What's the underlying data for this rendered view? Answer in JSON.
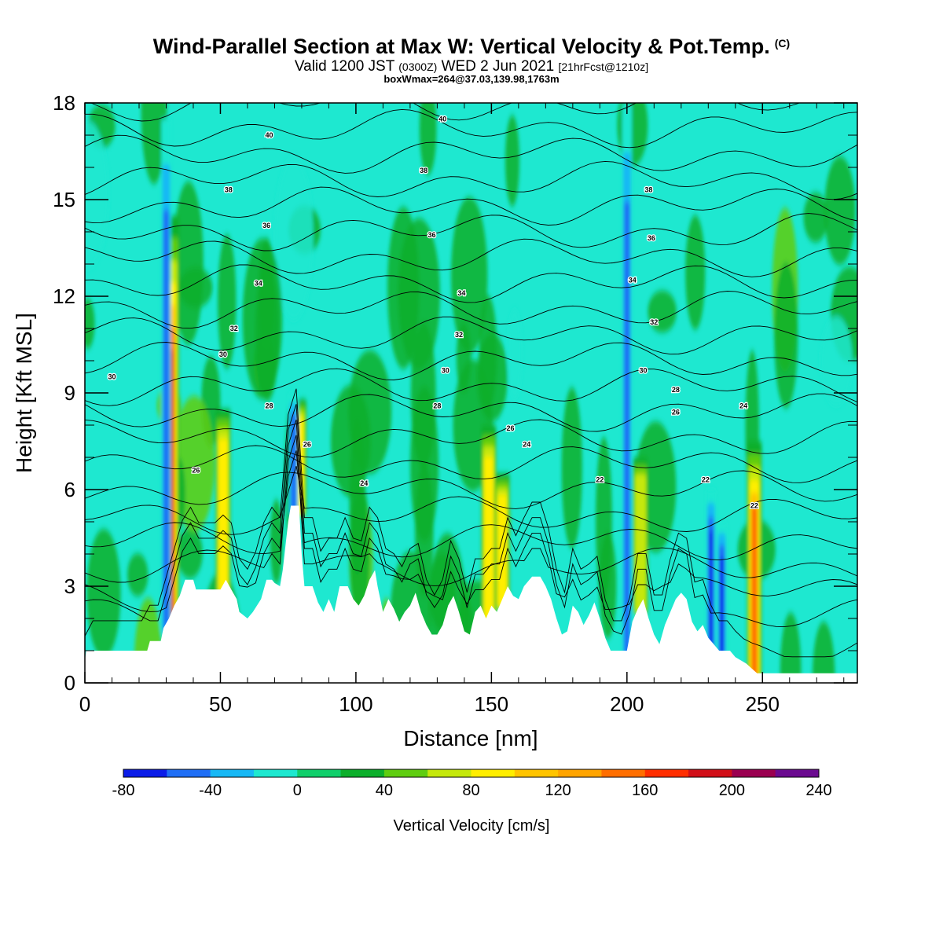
{
  "header": {
    "title": "Wind-Parallel Section at Max W: Vertical Velocity & Pot.Temp.",
    "title_mark": "(C)",
    "valid_prefix": "Valid 1200 JST",
    "valid_z": "(0300Z)",
    "valid_date": "WED 2 Jun 2021",
    "forecast": "[21hrFcst@1210z]",
    "boxline": "boxWmax=264@37.03,139.98,1763m"
  },
  "chart_data": {
    "type": "heatmap",
    "xlabel": "Distance [nm]",
    "ylabel": "Height [Kft MSL]",
    "xlim": [
      0,
      285
    ],
    "ylim": [
      0,
      18
    ],
    "xticks": [
      "0",
      "50",
      "100",
      "150",
      "200",
      "250"
    ],
    "yticks": [
      "0",
      "3",
      "6",
      "9",
      "12",
      "15",
      "18"
    ],
    "colorbar": {
      "label": "Vertical Velocity [cm/s]",
      "levels": [
        -80,
        -60,
        -40,
        -20,
        0,
        20,
        40,
        60,
        80,
        100,
        120,
        140,
        160,
        180,
        200,
        220,
        240
      ],
      "tick_labels": [
        "-80",
        "-40",
        "0",
        "40",
        "80",
        "120",
        "160",
        "200",
        "240"
      ],
      "colors": [
        "#0b1ce8",
        "#1f6ef5",
        "#17b8f5",
        "#1ee8d0",
        "#10cf6b",
        "#0caf2b",
        "#5fcd10",
        "#c5e80c",
        "#ffee00",
        "#ffc400",
        "#ffa400",
        "#ff6e00",
        "#ff2e00",
        "#d10f18",
        "#9a0050",
        "#6b0a90"
      ]
    },
    "background_color": "#1ee8d0",
    "updrafts": [
      {
        "x": 32,
        "z_top": 14.5,
        "w_peak": 200
      },
      {
        "x": 51,
        "z_top": 8.5,
        "w_peak": 80
      },
      {
        "x": 79,
        "z_top": 8.8,
        "w_peak": 80
      },
      {
        "x": 149,
        "z_top": 8.0,
        "w_peak": 90
      },
      {
        "x": 154,
        "z_top": 6.5,
        "w_peak": 80
      },
      {
        "x": 205,
        "z_top": 7.0,
        "w_peak": 70
      },
      {
        "x": 247,
        "z_top": 7.5,
        "w_peak": 140
      }
    ],
    "downdrafts": [
      {
        "x": 30,
        "z_top": 17.5,
        "w_min": -60
      },
      {
        "x": 77,
        "z_top": 9.0,
        "w_min": -60
      },
      {
        "x": 200,
        "z_top": 18.0,
        "w_min": -60
      },
      {
        "x": 231,
        "z_top": 6.0,
        "w_min": -80
      },
      {
        "x": 235,
        "z_top": 5.0,
        "w_min": -80
      }
    ],
    "theta_contours_k": [
      22,
      24,
      26,
      28,
      30,
      32,
      34,
      36,
      38,
      40
    ],
    "theta_labels": [
      {
        "x": 68,
        "z": 17.0,
        "text": "40"
      },
      {
        "x": 132,
        "z": 17.5,
        "text": "40"
      },
      {
        "x": 53,
        "z": 15.3,
        "text": "38"
      },
      {
        "x": 125,
        "z": 15.9,
        "text": "38"
      },
      {
        "x": 208,
        "z": 15.3,
        "text": "38"
      },
      {
        "x": 67,
        "z": 14.2,
        "text": "36"
      },
      {
        "x": 128,
        "z": 13.9,
        "text": "36"
      },
      {
        "x": 209,
        "z": 13.8,
        "text": "36"
      },
      {
        "x": 64,
        "z": 12.4,
        "text": "34"
      },
      {
        "x": 139,
        "z": 12.1,
        "text": "34"
      },
      {
        "x": 202,
        "z": 12.5,
        "text": "34"
      },
      {
        "x": 55,
        "z": 11.0,
        "text": "32"
      },
      {
        "x": 138,
        "z": 10.8,
        "text": "32"
      },
      {
        "x": 210,
        "z": 11.2,
        "text": "32"
      },
      {
        "x": 10,
        "z": 9.5,
        "text": "30"
      },
      {
        "x": 51,
        "z": 10.2,
        "text": "30"
      },
      {
        "x": 133,
        "z": 9.7,
        "text": "30"
      },
      {
        "x": 206,
        "z": 9.7,
        "text": "30"
      },
      {
        "x": 68,
        "z": 8.6,
        "text": "28"
      },
      {
        "x": 130,
        "z": 8.6,
        "text": "28"
      },
      {
        "x": 218,
        "z": 9.1,
        "text": "28"
      },
      {
        "x": 41,
        "z": 6.6,
        "text": "26"
      },
      {
        "x": 82,
        "z": 7.4,
        "text": "26"
      },
      {
        "x": 157,
        "z": 7.9,
        "text": "26"
      },
      {
        "x": 218,
        "z": 8.4,
        "text": "26"
      },
      {
        "x": 103,
        "z": 6.2,
        "text": "24"
      },
      {
        "x": 163,
        "z": 7.4,
        "text": "24"
      },
      {
        "x": 243,
        "z": 8.6,
        "text": "24"
      },
      {
        "x": 190,
        "z": 6.3,
        "text": "22"
      },
      {
        "x": 229,
        "z": 6.3,
        "text": "22"
      },
      {
        "x": 247,
        "z": 5.5,
        "text": "22"
      }
    ],
    "terrain_kft": [
      [
        0,
        0.7
      ],
      [
        0.5,
        1.0
      ],
      [
        23,
        1.0
      ],
      [
        24,
        1.3
      ],
      [
        28,
        1.3
      ],
      [
        29,
        1.7
      ],
      [
        31,
        2.0
      ],
      [
        33,
        2.4
      ],
      [
        35,
        2.7
      ],
      [
        37,
        3.2
      ],
      [
        40,
        3.2
      ],
      [
        41,
        2.9
      ],
      [
        50,
        2.9
      ],
      [
        52,
        3.2
      ],
      [
        54,
        2.9
      ],
      [
        56,
        2.6
      ],
      [
        57,
        2.2
      ],
      [
        60,
        2.0
      ],
      [
        62,
        2.2
      ],
      [
        65,
        2.6
      ],
      [
        67,
        3.2
      ],
      [
        69,
        3.2
      ],
      [
        70,
        3.1
      ],
      [
        72,
        3.0
      ],
      [
        73,
        3.5
      ],
      [
        75,
        5.0
      ],
      [
        76,
        5.5
      ],
      [
        79,
        5.5
      ],
      [
        80,
        4.0
      ],
      [
        81,
        3.0
      ],
      [
        84,
        3.0
      ],
      [
        86,
        2.5
      ],
      [
        88,
        2.2
      ],
      [
        90,
        2.6
      ],
      [
        92,
        2.2
      ],
      [
        94,
        3.0
      ],
      [
        97,
        3.0
      ],
      [
        99,
        2.6
      ],
      [
        101,
        2.4
      ],
      [
        103,
        2.7
      ],
      [
        105,
        3.2
      ],
      [
        107,
        3.5
      ],
      [
        108,
        3.0
      ],
      [
        110,
        2.2
      ],
      [
        112,
        2.6
      ],
      [
        114,
        2.3
      ],
      [
        116,
        1.9
      ],
      [
        118,
        2.2
      ],
      [
        120,
        2.4
      ],
      [
        122,
        2.8
      ],
      [
        124,
        2.2
      ],
      [
        126,
        1.8
      ],
      [
        128,
        1.5
      ],
      [
        130,
        1.5
      ],
      [
        132,
        1.8
      ],
      [
        134,
        2.4
      ],
      [
        136,
        2.7
      ],
      [
        138,
        2.2
      ],
      [
        140,
        1.6
      ],
      [
        142,
        1.5
      ],
      [
        144,
        2.2
      ],
      [
        146,
        2.4
      ],
      [
        148,
        2.0
      ],
      [
        150,
        2.4
      ],
      [
        152,
        2.2
      ],
      [
        154,
        2.6
      ],
      [
        156,
        3.0
      ],
      [
        158,
        2.7
      ],
      [
        160,
        2.6
      ],
      [
        162,
        3.0
      ],
      [
        165,
        3.3
      ],
      [
        168,
        3.3
      ],
      [
        170,
        3.0
      ],
      [
        172,
        2.6
      ],
      [
        174,
        2.0
      ],
      [
        176,
        1.5
      ],
      [
        178,
        1.6
      ],
      [
        180,
        2.4
      ],
      [
        182,
        2.2
      ],
      [
        184,
        1.8
      ],
      [
        186,
        2.1
      ],
      [
        188,
        2.5
      ],
      [
        190,
        2.0
      ],
      [
        192,
        1.4
      ],
      [
        194,
        1.0
      ],
      [
        200,
        1.0
      ],
      [
        202,
        1.9
      ],
      [
        204,
        2.3
      ],
      [
        206,
        2.6
      ],
      [
        208,
        2.0
      ],
      [
        210,
        1.5
      ],
      [
        212,
        1.2
      ],
      [
        214,
        1.8
      ],
      [
        216,
        2.2
      ],
      [
        218,
        2.6
      ],
      [
        220,
        2.8
      ],
      [
        222,
        2.6
      ],
      [
        224,
        1.9
      ],
      [
        226,
        1.6
      ],
      [
        228,
        1.8
      ],
      [
        230,
        1.4
      ],
      [
        232,
        1.2
      ],
      [
        234,
        1.0
      ],
      [
        236,
        1.0
      ],
      [
        238,
        1.0
      ],
      [
        240,
        0.8
      ],
      [
        244,
        0.6
      ],
      [
        248,
        0.3
      ],
      [
        250,
        0.3
      ],
      [
        285,
        0.3
      ]
    ]
  }
}
